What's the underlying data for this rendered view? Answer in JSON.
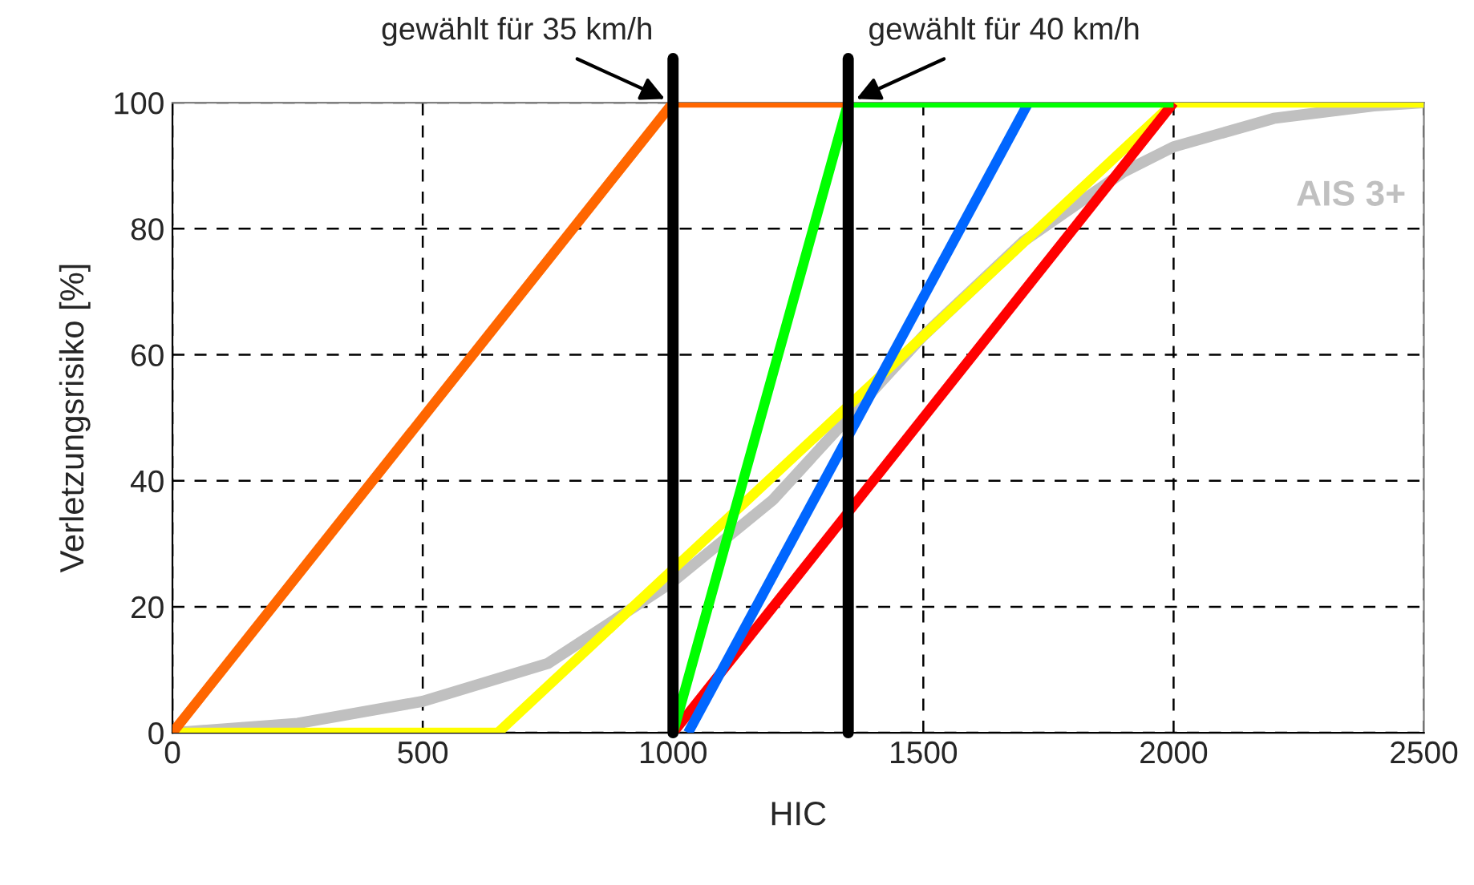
{
  "chart_data": {
    "type": "line",
    "xlabel": "HIC",
    "ylabel": "Verletzungsrisiko [%]",
    "xlim": [
      0,
      2500
    ],
    "ylim": [
      0,
      100
    ],
    "xticks": [
      0,
      500,
      1000,
      1500,
      2000,
      2500
    ],
    "yticks": [
      0,
      20,
      40,
      60,
      80,
      100
    ],
    "grid": true,
    "legend": false,
    "series": [
      {
        "name": "AIS 3+",
        "color": "#c0c0c0",
        "x": [
          0,
          250,
          500,
          750,
          1000,
          1200,
          1350,
          1500,
          1700,
          1900,
          2000,
          2200,
          2400,
          2500
        ],
        "values": [
          0,
          1.5,
          5,
          11,
          24,
          37,
          50,
          63,
          78,
          89,
          93,
          97.5,
          99.5,
          100
        ]
      },
      {
        "color": "#ffff00",
        "x": [
          0,
          650,
          2000,
          2500
        ],
        "values": [
          0,
          0,
          100,
          100
        ]
      },
      {
        "color": "#ff0000",
        "x": [
          1000,
          2000
        ],
        "values": [
          0,
          100
        ]
      },
      {
        "color": "#0066ff",
        "x": [
          1030,
          1710
        ],
        "values": [
          0,
          100
        ]
      },
      {
        "color": "#00ff00",
        "x": [
          1000,
          1350,
          2000
        ],
        "values": [
          0,
          100,
          100
        ]
      },
      {
        "color": "#ff6600",
        "x": [
          0,
          1000,
          1350
        ],
        "values": [
          0,
          100,
          100
        ]
      }
    ],
    "ref_lines": [
      {
        "axis": "x",
        "value": 1000,
        "label": "gewählt für 35 km/h",
        "color": "#000000"
      },
      {
        "axis": "x",
        "value": 1350,
        "label": "gewählt für 40 km/h",
        "color": "#000000"
      }
    ]
  }
}
